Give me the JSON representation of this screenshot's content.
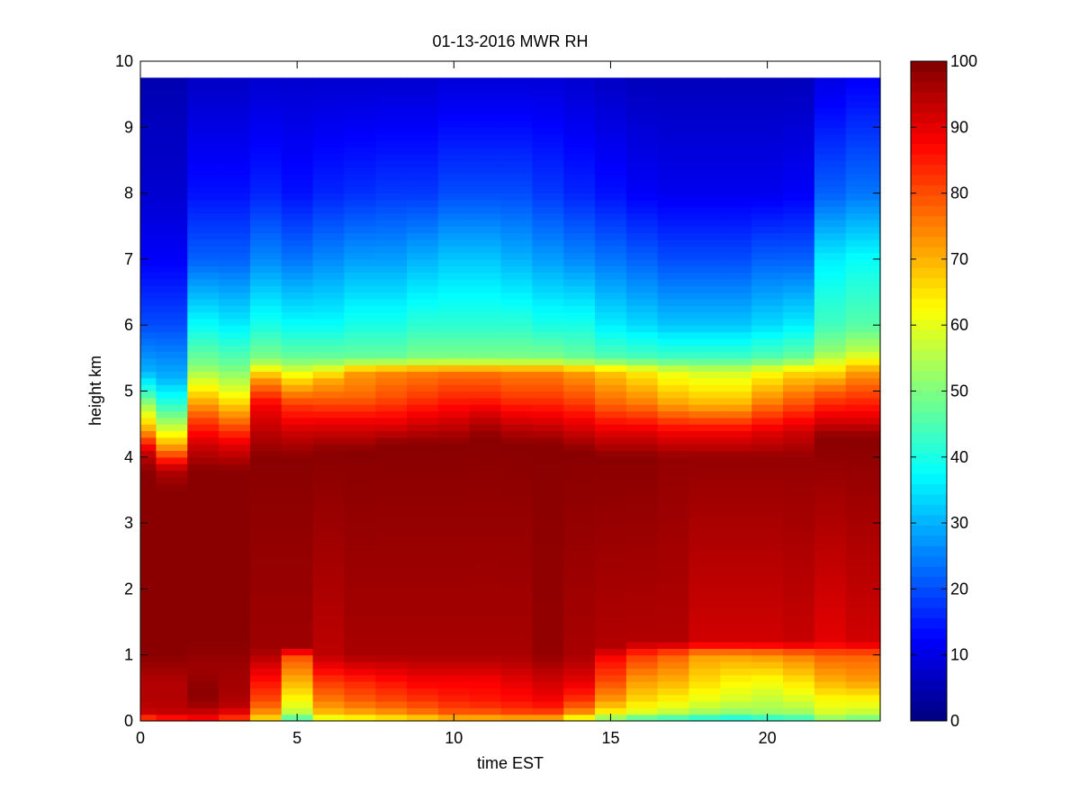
{
  "chart_data": {
    "type": "heatmap",
    "title": "01-13-2016 MWR RH",
    "xlabel": "time EST",
    "ylabel": "height km",
    "xlim": [
      0,
      23.6
    ],
    "ylim": [
      0,
      10
    ],
    "x_ticks": [
      0,
      5,
      10,
      15,
      20
    ],
    "y_ticks": [
      0,
      1,
      2,
      3,
      4,
      5,
      6,
      7,
      8,
      9,
      10
    ],
    "colorbar": {
      "range": [
        0,
        100
      ],
      "ticks": [
        0,
        10,
        20,
        30,
        40,
        50,
        60,
        70,
        80,
        90,
        100
      ],
      "colormap": "jet"
    },
    "grid": false,
    "x_centers": [
      0,
      1,
      2,
      3,
      4,
      5,
      6,
      7,
      8,
      9,
      10,
      11,
      12,
      13,
      14,
      15,
      16,
      17,
      18,
      19,
      20,
      21,
      22,
      23
    ],
    "profile_top_km": 9.75,
    "rh_profiles": [
      {
        "time": 0,
        "h": [
          0,
          0.1,
          0.3,
          0.6,
          1.0,
          3.8,
          4.1,
          4.4,
          4.7,
          5.0,
          5.3,
          6.0,
          7.0,
          8.0,
          9.7
        ],
        "rh": [
          75,
          92,
          95,
          95,
          99,
          99,
          92,
          72,
          58,
          42,
          30,
          20,
          12,
          8,
          5
        ]
      },
      {
        "time": 1,
        "h": [
          0,
          0.1,
          0.3,
          0.6,
          1.0,
          3.5,
          3.8,
          4.2,
          4.5,
          4.8,
          5.2,
          6.0,
          7.0,
          8.0,
          9.7
        ],
        "rh": [
          80,
          93,
          95,
          95,
          99,
          99,
          95,
          70,
          55,
          42,
          30,
          20,
          12,
          8,
          5
        ]
      },
      {
        "time": 2,
        "h": [
          0,
          0.2,
          0.4,
          0.8,
          1.2,
          3.8,
          4.2,
          4.6,
          5.0,
          5.4,
          6.0,
          7.0,
          8.0,
          9.7
        ],
        "rh": [
          86,
          96,
          99,
          97,
          99,
          99,
          92,
          80,
          65,
          50,
          38,
          22,
          14,
          7
        ]
      },
      {
        "time": 3,
        "h": [
          0,
          0.2,
          0.4,
          0.8,
          1.2,
          3.8,
          4.2,
          4.6,
          5.0,
          5.4,
          6.0,
          7.0,
          8.0,
          9.7
        ],
        "rh": [
          80,
          94,
          96,
          97,
          99,
          99,
          90,
          75,
          60,
          48,
          36,
          22,
          14,
          7
        ]
      },
      {
        "time": 4,
        "h": [
          0,
          0.1,
          0.3,
          0.6,
          1.1,
          4.0,
          4.4,
          4.8,
          5.2,
          5.5,
          6.0,
          7.0,
          8.0,
          9.7
        ],
        "rh": [
          63,
          72,
          80,
          86,
          97,
          99,
          94,
          88,
          72,
          50,
          40,
          26,
          16,
          8
        ]
      },
      {
        "time": 5,
        "h": [
          0,
          0.1,
          0.3,
          0.6,
          1.0,
          1.1,
          4.0,
          4.4,
          4.8,
          5.2,
          5.5,
          6.0,
          7.0,
          8.0,
          9.7
        ],
        "rh": [
          40,
          55,
          62,
          70,
          80,
          97,
          99,
          92,
          82,
          65,
          48,
          38,
          24,
          14,
          8
        ]
      },
      {
        "time": 6,
        "h": [
          0,
          0.1,
          0.3,
          0.6,
          1.0,
          4.1,
          4.5,
          4.9,
          5.2,
          5.5,
          6.0,
          7.0,
          8.0,
          9.7
        ],
        "rh": [
          55,
          68,
          75,
          82,
          94,
          99,
          90,
          78,
          70,
          48,
          38,
          26,
          16,
          8
        ]
      },
      {
        "time": 7,
        "h": [
          0,
          0.1,
          0.3,
          0.6,
          1.0,
          4.1,
          4.5,
          4.9,
          5.3,
          5.5,
          6.0,
          7.0,
          8.0,
          9.7
        ],
        "rh": [
          58,
          70,
          78,
          84,
          96,
          99,
          90,
          78,
          72,
          48,
          40,
          28,
          17,
          8
        ]
      },
      {
        "time": 8,
        "h": [
          0,
          0.1,
          0.3,
          0.6,
          1.0,
          4.2,
          4.5,
          4.9,
          5.3,
          5.5,
          6.0,
          7.0,
          8.0,
          9.7
        ],
        "rh": [
          60,
          72,
          80,
          86,
          96,
          99,
          90,
          80,
          74,
          48,
          40,
          28,
          18,
          8
        ]
      },
      {
        "time": 9,
        "h": [
          0,
          0.1,
          0.3,
          0.6,
          1.0,
          4.2,
          4.5,
          4.9,
          5.3,
          5.5,
          6.0,
          7.0,
          8.0,
          9.7
        ],
        "rh": [
          62,
          75,
          82,
          88,
          96,
          99,
          92,
          82,
          75,
          50,
          42,
          30,
          18,
          8
        ]
      },
      {
        "time": 10,
        "h": [
          0,
          0.1,
          0.3,
          0.6,
          1.0,
          4.2,
          4.5,
          4.9,
          5.3,
          5.5,
          6.0,
          7.0,
          8.0,
          9.7
        ],
        "rh": [
          65,
          78,
          84,
          88,
          96,
          99,
          93,
          84,
          76,
          50,
          42,
          32,
          20,
          9
        ]
      },
      {
        "time": 11,
        "h": [
          0,
          0.1,
          0.3,
          0.6,
          1.0,
          4.3,
          4.6,
          4.9,
          5.3,
          5.5,
          6.0,
          7.0,
          8.0,
          9.7
        ],
        "rh": [
          65,
          78,
          85,
          88,
          96,
          99,
          93,
          84,
          76,
          50,
          42,
          32,
          20,
          9
        ]
      },
      {
        "time": 12,
        "h": [
          0,
          0.1,
          0.3,
          0.6,
          1.0,
          4.2,
          4.5,
          4.9,
          5.3,
          5.5,
          6.0,
          7.0,
          8.0,
          9.7
        ],
        "rh": [
          65,
          80,
          86,
          90,
          96,
          99,
          93,
          82,
          75,
          50,
          42,
          30,
          20,
          9
        ]
      },
      {
        "time": 13,
        "h": [
          0,
          0.1,
          0.3,
          0.6,
          1.0,
          4.2,
          4.5,
          4.9,
          5.3,
          5.5,
          6.0,
          7.0,
          8.0,
          9.7
        ],
        "rh": [
          65,
          80,
          88,
          92,
          98,
          99,
          92,
          82,
          75,
          50,
          40,
          28,
          18,
          9
        ]
      },
      {
        "time": 14,
        "h": [
          0,
          0.1,
          0.3,
          0.6,
          1.0,
          4.1,
          4.5,
          4.9,
          5.3,
          5.5,
          6.0,
          7.0,
          8.0,
          9.7
        ],
        "rh": [
          55,
          72,
          82,
          90,
          96,
          99,
          90,
          80,
          72,
          48,
          40,
          26,
          16,
          8
        ]
      },
      {
        "time": 15,
        "h": [
          0,
          0.1,
          0.3,
          0.6,
          1.0,
          1.1,
          4.0,
          4.4,
          4.8,
          5.3,
          5.5,
          6.0,
          7.0,
          8.0,
          9.7
        ],
        "rh": [
          45,
          62,
          72,
          80,
          88,
          95,
          99,
          90,
          78,
          68,
          46,
          36,
          24,
          14,
          7
        ]
      },
      {
        "time": 16,
        "h": [
          0,
          0.1,
          0.3,
          0.6,
          1.0,
          1.2,
          4.0,
          4.4,
          4.8,
          5.3,
          5.5,
          6.0,
          7.0,
          8.0,
          9.7
        ],
        "rh": [
          38,
          58,
          66,
          72,
          82,
          95,
          99,
          90,
          76,
          64,
          45,
          34,
          22,
          12,
          6
        ]
      },
      {
        "time": 17,
        "h": [
          0,
          0.1,
          0.3,
          0.6,
          1.0,
          1.2,
          4.0,
          4.4,
          4.8,
          5.3,
          5.5,
          6.0,
          7.0,
          8.0,
          9.7
        ],
        "rh": [
          36,
          55,
          63,
          70,
          78,
          95,
          98,
          88,
          72,
          60,
          44,
          32,
          20,
          11,
          6
        ]
      },
      {
        "time": 18,
        "h": [
          0,
          0.1,
          0.3,
          0.6,
          1.0,
          1.2,
          4.0,
          4.4,
          4.8,
          5.3,
          5.5,
          6.0,
          7.0,
          8.0,
          9.7
        ],
        "rh": [
          34,
          52,
          60,
          66,
          72,
          92,
          98,
          88,
          70,
          58,
          44,
          32,
          20,
          11,
          6
        ]
      },
      {
        "time": 19,
        "h": [
          0,
          0.1,
          0.3,
          0.6,
          1.0,
          1.2,
          4.0,
          4.4,
          4.8,
          5.3,
          5.5,
          6.0,
          7.0,
          8.0,
          9.7
        ],
        "rh": [
          33,
          50,
          58,
          63,
          72,
          92,
          98,
          88,
          70,
          58,
          44,
          32,
          20,
          11,
          6
        ]
      },
      {
        "time": 20,
        "h": [
          0,
          0.1,
          0.3,
          0.6,
          1.0,
          1.2,
          4.0,
          4.4,
          4.8,
          5.3,
          5.5,
          6.0,
          7.0,
          8.0,
          9.7
        ],
        "rh": [
          35,
          52,
          56,
          62,
          73,
          92,
          98,
          90,
          76,
          62,
          46,
          34,
          22,
          11,
          6
        ]
      },
      {
        "time": 21,
        "h": [
          0,
          0.1,
          0.3,
          0.6,
          1.0,
          1.2,
          4.0,
          4.4,
          4.8,
          5.3,
          5.5,
          6.0,
          7.0,
          8.0,
          9.7
        ],
        "rh": [
          38,
          52,
          58,
          65,
          75,
          93,
          98,
          92,
          80,
          66,
          48,
          36,
          22,
          12,
          6
        ]
      },
      {
        "time": 22,
        "h": [
          0,
          0.1,
          0.3,
          0.6,
          1.0,
          1.2,
          4.3,
          4.6,
          5.0,
          5.3,
          5.6,
          6.0,
          7.0,
          8.0,
          9.7
        ],
        "rh": [
          48,
          58,
          62,
          70,
          78,
          90,
          99,
          90,
          78,
          66,
          52,
          44,
          36,
          22,
          10
        ]
      },
      {
        "time": 23,
        "h": [
          0,
          0.1,
          0.3,
          0.6,
          1.0,
          1.2,
          4.3,
          4.6,
          5.0,
          5.3,
          5.6,
          6.0,
          7.0,
          8.0,
          9.7
        ],
        "rh": [
          45,
          56,
          62,
          72,
          78,
          92,
          99,
          90,
          80,
          72,
          56,
          46,
          38,
          24,
          12
        ]
      }
    ]
  }
}
